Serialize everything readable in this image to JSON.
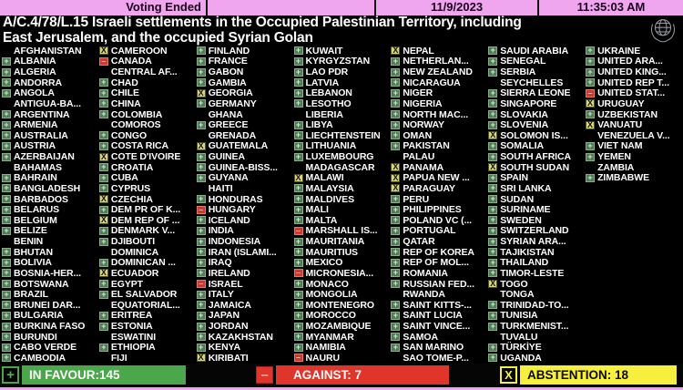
{
  "header": {
    "status": "Voting Ended",
    "date": "11/9/2023",
    "time": "11:35:03 AM"
  },
  "title": {
    "line1": "A/C.4/78/L.15  Israeli settlements in the Occupied Palestinian Territory, including",
    "line2": "East Jerusalem, and the occupied Syrian Golan"
  },
  "legend": {
    "yes_symbol": "+",
    "no_symbol": "–",
    "abstain_symbol": "X"
  },
  "summary": {
    "in_favour_label": "IN FAVOUR:145",
    "against_label": "AGAINST: 7",
    "abstention_label": "ABSTENTION: 18"
  },
  "colors": {
    "header_pink": "#f0a6ee",
    "in_favour_green": "#4ca64c",
    "against_red": "#e0352a",
    "abstention_yellow": "#f7ef3d",
    "marker_yes_bg": "#4e7c54",
    "marker_yes_glyph": "#d2e8d2",
    "marker_no_bg": "#c73b30",
    "marker_no_glyph": "#f2b2a8",
    "marker_abstain_bg": "#d6d47c"
  },
  "columns": [
    [
      {
        "n": "AFGHANISTAN",
        "v": ""
      },
      {
        "n": "ALBANIA",
        "v": "Y"
      },
      {
        "n": "ALGERIA",
        "v": "Y"
      },
      {
        "n": "ANDORRA",
        "v": "Y"
      },
      {
        "n": "ANGOLA",
        "v": "Y"
      },
      {
        "n": "ANTIGUA-BA...",
        "v": ""
      },
      {
        "n": "ARGENTINA",
        "v": "Y"
      },
      {
        "n": "ARMENIA",
        "v": "Y"
      },
      {
        "n": "AUSTRALIA",
        "v": "Y"
      },
      {
        "n": "AUSTRIA",
        "v": "Y"
      },
      {
        "n": "AZERBAIJAN",
        "v": "Y"
      },
      {
        "n": "BAHAMAS",
        "v": ""
      },
      {
        "n": "BAHRAIN",
        "v": "Y"
      },
      {
        "n": "BANGLADESH",
        "v": "Y"
      },
      {
        "n": "BARBADOS",
        "v": "Y"
      },
      {
        "n": "BELARUS",
        "v": "Y"
      },
      {
        "n": "BELGIUM",
        "v": "Y"
      },
      {
        "n": "BELIZE",
        "v": "Y"
      },
      {
        "n": "BENIN",
        "v": ""
      },
      {
        "n": "BHUTAN",
        "v": "Y"
      },
      {
        "n": "BOLIVIA",
        "v": "Y"
      },
      {
        "n": "BOSNIA-HER...",
        "v": "Y"
      },
      {
        "n": "BOTSWANA",
        "v": "Y"
      },
      {
        "n": "BRAZIL",
        "v": "Y"
      },
      {
        "n": "BRUNEI DAR...",
        "v": "Y"
      },
      {
        "n": "BULGARIA",
        "v": "Y"
      },
      {
        "n": "BURKINA FASO",
        "v": "Y"
      },
      {
        "n": "BURUNDI",
        "v": "Y"
      },
      {
        "n": "CABO VERDE",
        "v": "Y"
      },
      {
        "n": "CAMBODIA",
        "v": "Y"
      }
    ],
    [
      {
        "n": "CAMEROON",
        "v": "A"
      },
      {
        "n": "CANADA",
        "v": "N"
      },
      {
        "n": "CENTRAL AF...",
        "v": ""
      },
      {
        "n": "CHAD",
        "v": "Y"
      },
      {
        "n": "CHILE",
        "v": "Y"
      },
      {
        "n": "CHINA",
        "v": "Y"
      },
      {
        "n": "COLOMBIA",
        "v": "Y"
      },
      {
        "n": "COMOROS",
        "v": ""
      },
      {
        "n": "CONGO",
        "v": "Y"
      },
      {
        "n": "COSTA RICA",
        "v": "Y"
      },
      {
        "n": "COTE D'IVOIRE",
        "v": "A"
      },
      {
        "n": "CROATIA",
        "v": "Y"
      },
      {
        "n": "CUBA",
        "v": "Y"
      },
      {
        "n": "CYPRUS",
        "v": "Y"
      },
      {
        "n": "CZECHIA",
        "v": "A"
      },
      {
        "n": "DEM PR OF K...",
        "v": "Y"
      },
      {
        "n": "DEM REP OF ...",
        "v": "A"
      },
      {
        "n": "DENMARK V...",
        "v": "Y"
      },
      {
        "n": "DJIBOUTI",
        "v": "Y"
      },
      {
        "n": "DOMINICA",
        "v": ""
      },
      {
        "n": "DOMINICAN ...",
        "v": "Y"
      },
      {
        "n": "ECUADOR",
        "v": "A"
      },
      {
        "n": "EGYPT",
        "v": "Y"
      },
      {
        "n": "EL SALVADOR",
        "v": "Y"
      },
      {
        "n": "EQUATORIAL...",
        "v": ""
      },
      {
        "n": "ERITREA",
        "v": "Y"
      },
      {
        "n": "ESTONIA",
        "v": "Y"
      },
      {
        "n": "ESWATINI",
        "v": ""
      },
      {
        "n": "ETHIOPIA",
        "v": "Y"
      },
      {
        "n": "FIJI",
        "v": ""
      }
    ],
    [
      {
        "n": "FINLAND",
        "v": "Y"
      },
      {
        "n": "FRANCE",
        "v": "Y"
      },
      {
        "n": "GABON",
        "v": "Y"
      },
      {
        "n": "GAMBIA",
        "v": "Y"
      },
      {
        "n": "GEORGIA",
        "v": "A"
      },
      {
        "n": "GERMANY",
        "v": "Y"
      },
      {
        "n": "GHANA",
        "v": ""
      },
      {
        "n": "GREECE",
        "v": "Y"
      },
      {
        "n": "GRENADA",
        "v": ""
      },
      {
        "n": "GUATEMALA",
        "v": "A"
      },
      {
        "n": "GUINEA",
        "v": "Y"
      },
      {
        "n": "GUINEA-BISS...",
        "v": "Y"
      },
      {
        "n": "GUYANA",
        "v": "Y"
      },
      {
        "n": "HAITI",
        "v": ""
      },
      {
        "n": "HONDURAS",
        "v": "Y"
      },
      {
        "n": "HUNGARY",
        "v": "N"
      },
      {
        "n": "ICELAND",
        "v": "Y"
      },
      {
        "n": "INDIA",
        "v": "Y"
      },
      {
        "n": "INDONESIA",
        "v": "Y"
      },
      {
        "n": "IRAN (ISLAMI...",
        "v": "Y"
      },
      {
        "n": "IRAQ",
        "v": "Y"
      },
      {
        "n": "IRELAND",
        "v": "Y"
      },
      {
        "n": "ISRAEL",
        "v": "N"
      },
      {
        "n": "ITALY",
        "v": "Y"
      },
      {
        "n": "JAMAICA",
        "v": "Y"
      },
      {
        "n": "JAPAN",
        "v": "Y"
      },
      {
        "n": "JORDAN",
        "v": "Y"
      },
      {
        "n": "KAZAKHSTAN",
        "v": "Y"
      },
      {
        "n": "KENYA",
        "v": "Y"
      },
      {
        "n": "KIRIBATI",
        "v": "A"
      }
    ],
    [
      {
        "n": "KUWAIT",
        "v": "Y"
      },
      {
        "n": "KYRGYZSTAN",
        "v": "Y"
      },
      {
        "n": "LAO PDR",
        "v": "Y"
      },
      {
        "n": "LATVIA",
        "v": "Y"
      },
      {
        "n": "LEBANON",
        "v": "Y"
      },
      {
        "n": "LESOTHO",
        "v": "Y"
      },
      {
        "n": "LIBERIA",
        "v": ""
      },
      {
        "n": "LIBYA",
        "v": "Y"
      },
      {
        "n": "LIECHTENSTEIN",
        "v": "Y"
      },
      {
        "n": "LITHUANIA",
        "v": "Y"
      },
      {
        "n": "LUXEMBOURG",
        "v": "Y"
      },
      {
        "n": "MADAGASCAR",
        "v": ""
      },
      {
        "n": "MALAWI",
        "v": "A"
      },
      {
        "n": "MALAYSIA",
        "v": "Y"
      },
      {
        "n": "MALDIVES",
        "v": "Y"
      },
      {
        "n": "MALI",
        "v": "Y"
      },
      {
        "n": "MALTA",
        "v": "Y"
      },
      {
        "n": "MARSHALL IS...",
        "v": "N"
      },
      {
        "n": "MAURITANIA",
        "v": "Y"
      },
      {
        "n": "MAURITIUS",
        "v": "Y"
      },
      {
        "n": "MEXICO",
        "v": "Y"
      },
      {
        "n": "MICRONESIA...",
        "v": "N"
      },
      {
        "n": "MONACO",
        "v": "Y"
      },
      {
        "n": "MONGOLIA",
        "v": "Y"
      },
      {
        "n": "MONTENEGRO",
        "v": "Y"
      },
      {
        "n": "MOROCCO",
        "v": "Y"
      },
      {
        "n": "MOZAMBIQUE",
        "v": "Y"
      },
      {
        "n": "MYANMAR",
        "v": "Y"
      },
      {
        "n": "NAMIBIA",
        "v": "Y"
      },
      {
        "n": "NAURU",
        "v": "N"
      }
    ],
    [
      {
        "n": "NEPAL",
        "v": "A"
      },
      {
        "n": "NETHERLAN...",
        "v": "Y"
      },
      {
        "n": "NEW ZEALAND",
        "v": "Y"
      },
      {
        "n": "NICARAGUA",
        "v": "Y"
      },
      {
        "n": "NIGER",
        "v": "Y"
      },
      {
        "n": "NIGERIA",
        "v": "Y"
      },
      {
        "n": "NORTH MAC...",
        "v": "Y"
      },
      {
        "n": "NORWAY",
        "v": "Y"
      },
      {
        "n": "OMAN",
        "v": "Y"
      },
      {
        "n": "PAKISTAN",
        "v": "Y"
      },
      {
        "n": "PALAU",
        "v": ""
      },
      {
        "n": "PANAMA",
        "v": "A"
      },
      {
        "n": "PAPUA NEW ...",
        "v": "A"
      },
      {
        "n": "PARAGUAY",
        "v": "A"
      },
      {
        "n": "PERU",
        "v": "Y"
      },
      {
        "n": "PHILIPPINES",
        "v": "Y"
      },
      {
        "n": "POLAND VC (...",
        "v": "Y"
      },
      {
        "n": "PORTUGAL",
        "v": "Y"
      },
      {
        "n": "QATAR",
        "v": "Y"
      },
      {
        "n": "REP OF KOREA",
        "v": "Y"
      },
      {
        "n": "REP OF MOL...",
        "v": "Y"
      },
      {
        "n": "ROMANIA",
        "v": "Y"
      },
      {
        "n": "RUSSIAN FED...",
        "v": "Y"
      },
      {
        "n": "RWANDA",
        "v": ""
      },
      {
        "n": "SAINT KITTS-...",
        "v": "Y"
      },
      {
        "n": "SAINT LUCIA",
        "v": "Y"
      },
      {
        "n": "SAINT VINCE...",
        "v": "Y"
      },
      {
        "n": "SAMOA",
        "v": "Y"
      },
      {
        "n": "SAN MARINO",
        "v": "Y"
      },
      {
        "n": "SAO TOME-P...",
        "v": ""
      }
    ],
    [
      {
        "n": "SAUDI ARABIA",
        "v": "Y"
      },
      {
        "n": "SENEGAL",
        "v": "Y"
      },
      {
        "n": "SERBIA",
        "v": "Y"
      },
      {
        "n": "SEYCHELLES",
        "v": ""
      },
      {
        "n": "SIERRA LEONE",
        "v": "Y"
      },
      {
        "n": "SINGAPORE",
        "v": "Y"
      },
      {
        "n": "SLOVAKIA",
        "v": "Y"
      },
      {
        "n": "SLOVENIA",
        "v": "Y"
      },
      {
        "n": "SOLOMON IS...",
        "v": "A"
      },
      {
        "n": "SOMALIA",
        "v": "Y"
      },
      {
        "n": "SOUTH AFRICA",
        "v": "Y"
      },
      {
        "n": "SOUTH SUDAN",
        "v": "A"
      },
      {
        "n": "SPAIN",
        "v": "Y"
      },
      {
        "n": "SRI LANKA",
        "v": "Y"
      },
      {
        "n": "SUDAN",
        "v": "Y"
      },
      {
        "n": "SURINAME",
        "v": "Y"
      },
      {
        "n": "SWEDEN",
        "v": "Y"
      },
      {
        "n": "SWITZERLAND",
        "v": "Y"
      },
      {
        "n": "SYRIAN ARA...",
        "v": "Y"
      },
      {
        "n": "TAJIKISTAN",
        "v": "Y"
      },
      {
        "n": "THAILAND",
        "v": "Y"
      },
      {
        "n": "TIMOR-LESTE",
        "v": "Y"
      },
      {
        "n": "TOGO",
        "v": "A"
      },
      {
        "n": "TONGA",
        "v": ""
      },
      {
        "n": "TRINIDAD-TO...",
        "v": "Y"
      },
      {
        "n": "TUNISIA",
        "v": "Y"
      },
      {
        "n": "TURKMENIST...",
        "v": "Y"
      },
      {
        "n": "TUVALU",
        "v": ""
      },
      {
        "n": "TÜRKİYE",
        "v": "Y"
      },
      {
        "n": "UGANDA",
        "v": "Y"
      }
    ],
    [
      {
        "n": "UKRAINE",
        "v": "Y"
      },
      {
        "n": "UNITED ARA...",
        "v": "Y"
      },
      {
        "n": "UNITED KING...",
        "v": "Y"
      },
      {
        "n": "UNITED REP T...",
        "v": "Y"
      },
      {
        "n": "UNITED STAT...",
        "v": "N"
      },
      {
        "n": "URUGUAY",
        "v": "A"
      },
      {
        "n": "UZBEKISTAN",
        "v": "Y"
      },
      {
        "n": "VANUATU",
        "v": "A"
      },
      {
        "n": "VENEZUELA V...",
        "v": ""
      },
      {
        "n": "VIET NAM",
        "v": "Y"
      },
      {
        "n": "YEMEN",
        "v": "Y"
      },
      {
        "n": "ZAMBIA",
        "v": ""
      },
      {
        "n": "ZIMBABWE",
        "v": "Y"
      }
    ]
  ]
}
